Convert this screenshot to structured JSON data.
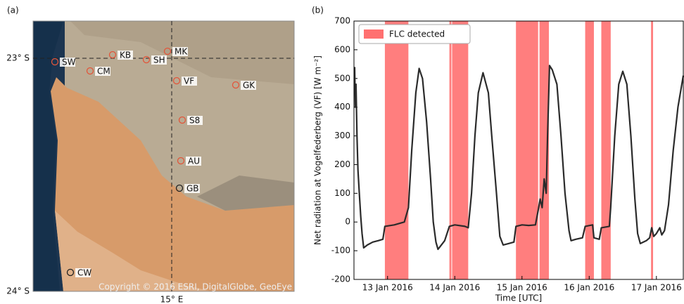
{
  "map": {
    "panel_label": "(a)",
    "lat_labels": [
      "23° S",
      "24° S"
    ],
    "lon_labels": [
      "15° E"
    ],
    "copyright": "Copyright © 2016 ESRI, DigitalGlobe, GeoEye",
    "stations": [
      {
        "label": "SW",
        "color": "#e2553a"
      },
      {
        "label": "KB",
        "color": "#e2553a"
      },
      {
        "label": "MK",
        "color": "#e2553a"
      },
      {
        "label": "SH",
        "color": "#e2553a"
      },
      {
        "label": "CM",
        "color": "#e2553a"
      },
      {
        "label": "VF",
        "color": "#e2553a"
      },
      {
        "label": "GK",
        "color": "#e2553a"
      },
      {
        "label": "S8",
        "color": "#e2553a"
      },
      {
        "label": "AU",
        "color": "#e2553a"
      },
      {
        "label": "GB",
        "color": "#222222"
      },
      {
        "label": "CW",
        "color": "#222222"
      }
    ]
  },
  "chart_data": {
    "type": "line",
    "panel_label": "(b)",
    "x_label": "Time [UTC]",
    "y_label": "Net radiation at Vogelfederberg (VF) [W m⁻²]",
    "color": "#2b2b2b",
    "x": [
      12.51,
      12.52,
      12.53,
      12.545,
      12.56,
      12.58,
      12.6,
      12.62,
      12.645,
      12.7,
      12.78,
      12.86,
      12.93,
      12.96,
      13.1,
      13.25,
      13.31,
      13.36,
      13.42,
      13.47,
      13.52,
      13.58,
      13.64,
      13.68,
      13.72,
      13.75,
      13.8,
      13.85,
      13.92,
      14.0,
      14.15,
      14.2,
      14.25,
      14.3,
      14.35,
      14.42,
      14.5,
      14.55,
      14.62,
      14.67,
      14.72,
      14.8,
      14.88,
      14.91,
      15.0,
      15.1,
      15.2,
      15.24,
      15.27,
      15.3,
      15.33,
      15.36,
      15.38,
      15.41,
      15.45,
      15.52,
      15.58,
      15.64,
      15.7,
      15.73,
      15.8,
      15.9,
      15.94,
      16.05,
      16.07,
      16.15,
      16.18,
      16.3,
      16.32,
      16.38,
      16.44,
      16.5,
      16.56,
      16.62,
      16.68,
      16.72,
      16.76,
      16.85,
      16.9,
      16.93,
      16.96,
      17.0,
      17.05,
      17.08,
      17.12,
      17.18,
      17.25,
      17.32,
      17.4
    ],
    "values": [
      540,
      400,
      480,
      300,
      180,
      100,
      20,
      -40,
      -90,
      -80,
      -70,
      -65,
      -60,
      -15,
      -10,
      0,
      50,
      250,
      450,
      535,
      500,
      350,
      150,
      0,
      -70,
      -95,
      -80,
      -65,
      -15,
      -10,
      -15,
      -20,
      100,
      300,
      450,
      520,
      450,
      300,
      100,
      -50,
      -80,
      -75,
      -70,
      -15,
      -10,
      -12,
      -10,
      40,
      80,
      50,
      150,
      100,
      300,
      545,
      530,
      480,
      300,
      100,
      -30,
      -65,
      -60,
      -55,
      -15,
      -10,
      -55,
      -60,
      -20,
      -15,
      50,
      300,
      480,
      525,
      480,
      300,
      80,
      -40,
      -75,
      -65,
      -55,
      -20,
      -50,
      -40,
      -20,
      -45,
      -30,
      60,
      250,
      400,
      510
    ],
    "shaded": {
      "name": "FLC detected",
      "color": "#ff7070",
      "intervals": [
        [
          12.96,
          13.31
        ],
        [
          13.92,
          13.95
        ],
        [
          13.96,
          14.2
        ],
        [
          14.91,
          15.24
        ],
        [
          15.26,
          15.4
        ],
        [
          15.94,
          16.07
        ],
        [
          16.18,
          16.32
        ],
        [
          16.92,
          16.95
        ]
      ]
    },
    "xlim": [
      12.5,
      17.4
    ],
    "xticks": [
      {
        "value": 13,
        "label": "13 Jan 2016"
      },
      {
        "value": 14,
        "label": "14 Jan 2016"
      },
      {
        "value": 15,
        "label": "15 Jan 2016"
      },
      {
        "value": 16,
        "label": "16 Jan 2016"
      },
      {
        "value": 17,
        "label": "17 Jan 2016"
      }
    ],
    "ylim": [
      -200,
      700
    ],
    "yticks": [
      -200,
      -100,
      0,
      100,
      200,
      300,
      400,
      500,
      600,
      700
    ],
    "legend": "upper left"
  }
}
